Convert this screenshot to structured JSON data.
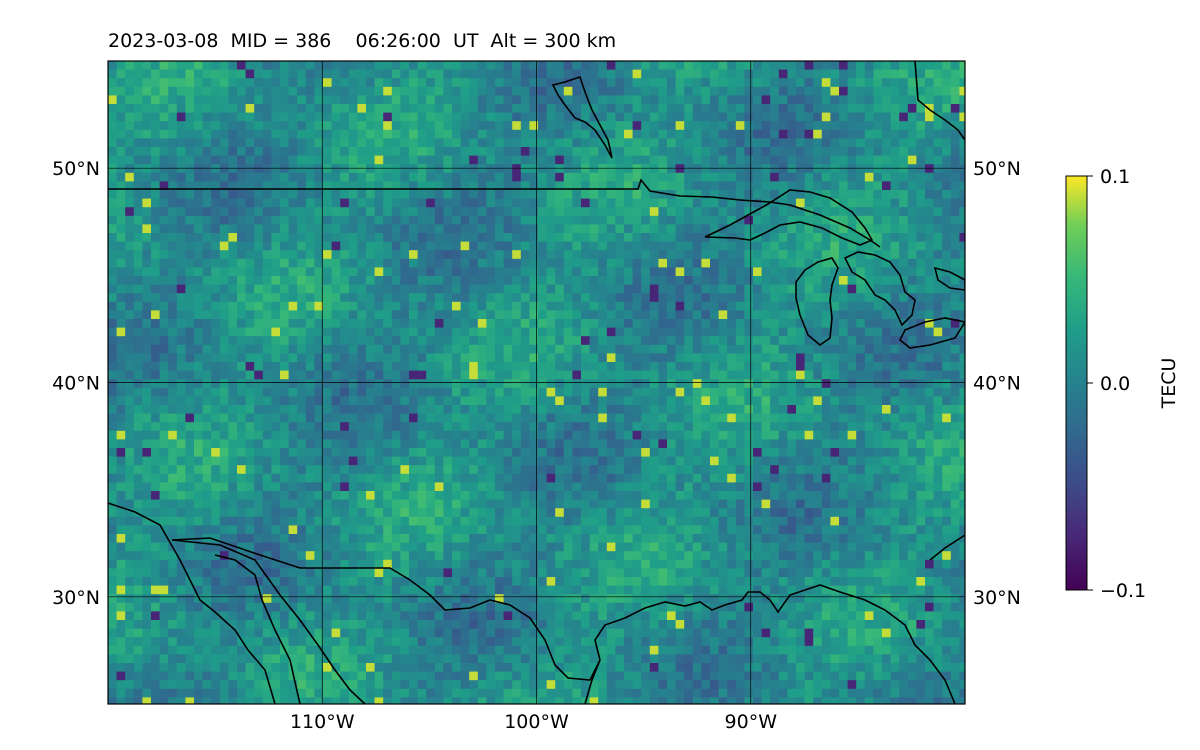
{
  "title": "2023-03-08  MID = 386    06:26:00  UT  Alt = 300 km",
  "map": {
    "lon_range": [
      -120,
      -80
    ],
    "lat_range": [
      25,
      55
    ],
    "meridians": [
      -110,
      -100,
      -90
    ],
    "parallels": [
      30,
      40,
      50
    ],
    "lon_labels": [
      "110°W",
      "100°W",
      "90°W"
    ],
    "lat_labels": [
      "30°N",
      "40°N",
      "50°N"
    ],
    "grid": true
  },
  "colorbar": {
    "label": "TECU",
    "min": -0.1,
    "max": 0.1,
    "tick_labels": [
      "0.1",
      "0.0",
      "−0.1"
    ],
    "colormap": "viridis"
  }
}
